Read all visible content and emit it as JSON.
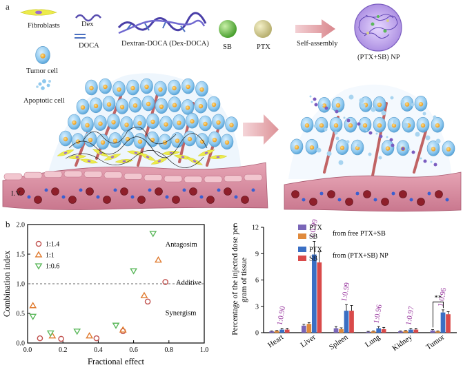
{
  "panel_a": {
    "letter": "a",
    "legend": {
      "fibroblasts": "Fibroblasts",
      "dex": "Dex",
      "doca": "DOCA",
      "dex_doca": "Dextran-DOCA (Dex-DOCA)",
      "sb": "SB",
      "ptx": "PTX",
      "self_assembly": "Self-assembly",
      "np": "(PTX+SB) NP",
      "tumor_cell": "Tumor cell",
      "apoptotic_cell": "Apoptotic cell"
    },
    "iv_label": "I.V.",
    "colors": {
      "tumor_cell": "#8ec8ee",
      "nucleus": "#f3b23a",
      "fibroblast": "#e8e63a",
      "vessel": "#d98aa0",
      "sb": "#6cc04a",
      "ptx": "#d6d08a",
      "arrow": "#d9868c",
      "np": "#7a5cc0"
    }
  },
  "panel_b": {
    "letter": "b",
    "chart_data": {
      "type": "scatter",
      "xlabel": "Fractional effect",
      "ylabel": "Combination index",
      "xlim": [
        0.0,
        1.0
      ],
      "ylim": [
        0.0,
        2.0
      ],
      "xticks": [
        "0.0",
        "0.2",
        "0.4",
        "0.6",
        "0.8",
        "1.0"
      ],
      "yticks": [
        "0.0",
        "0.5",
        "1.0",
        "1.5",
        "2.0"
      ],
      "reference_line": 1.0,
      "annotations": [
        "Antagosim",
        "Additive",
        "Synergism"
      ],
      "series": [
        {
          "name": "1:1.4",
          "marker": "circle",
          "color": "#c0504d",
          "points": [
            [
              0.07,
              0.08
            ],
            [
              0.19,
              0.07
            ],
            [
              0.39,
              0.08
            ],
            [
              0.54,
              0.2
            ],
            [
              0.68,
              0.7
            ],
            [
              0.78,
              1.03
            ]
          ]
        },
        {
          "name": "1:1",
          "marker": "triangle-up",
          "color": "#e07a2e",
          "points": [
            [
              0.03,
              0.63
            ],
            [
              0.14,
              0.12
            ],
            [
              0.35,
              0.12
            ],
            [
              0.54,
              0.22
            ],
            [
              0.66,
              0.8
            ],
            [
              0.74,
              1.4
            ]
          ]
        },
        {
          "name": "1:0.6",
          "marker": "triangle-down",
          "color": "#5bb85b",
          "points": [
            [
              0.03,
              0.45
            ],
            [
              0.13,
              0.17
            ],
            [
              0.28,
              0.2
            ],
            [
              0.5,
              0.3
            ],
            [
              0.6,
              1.22
            ],
            [
              0.71,
              1.85
            ]
          ]
        }
      ]
    }
  },
  "panel_c": {
    "letter": "c",
    "chart_data": {
      "type": "bar",
      "ylabel": "Percentage of the injected dose per gram of tissue",
      "ylim": [
        0,
        12
      ],
      "yticks": [
        "0",
        "3",
        "6",
        "9",
        "12"
      ],
      "categories": [
        "Heart",
        "Liver",
        "Spleen",
        "Lung",
        "Kidney",
        "Tumor"
      ],
      "ratio_labels": [
        "1:0.90",
        "1:0.99",
        "1:0.99",
        "1:0.96",
        "1:0.97",
        "1:0.96"
      ],
      "ratio_color": "#9a3aa0",
      "legend_groups": [
        "from free PTX+SB",
        "from (PTX+SB) NP"
      ],
      "significance": "**",
      "series": [
        {
          "name": "PTX",
          "group": "from free PTX+SB",
          "color": "#7a66b8",
          "values": [
            0.15,
            0.8,
            0.5,
            0.1,
            0.15,
            0.25
          ],
          "errors": [
            0.05,
            0.15,
            0.2,
            0.05,
            0.05,
            0.1
          ]
        },
        {
          "name": "SB",
          "group": "from free PTX+SB",
          "color": "#e08a3c",
          "values": [
            0.2,
            1.0,
            0.4,
            0.15,
            0.2,
            0.15
          ],
          "errors": [
            0.05,
            0.15,
            0.15,
            0.05,
            0.05,
            0.05
          ]
        },
        {
          "name": "PTX",
          "group": "from (PTX+SB) NP",
          "color": "#3a6fc4",
          "values": [
            0.35,
            8.9,
            2.5,
            0.5,
            0.35,
            2.3
          ],
          "errors": [
            0.15,
            1.5,
            0.7,
            0.2,
            0.15,
            0.3
          ]
        },
        {
          "name": "SB",
          "group": "from (PTX+SB) NP",
          "color": "#d94a4a",
          "values": [
            0.35,
            8.0,
            2.5,
            0.4,
            0.35,
            2.1
          ],
          "errors": [
            0.15,
            1.2,
            0.6,
            0.2,
            0.15,
            0.3
          ]
        }
      ]
    }
  }
}
